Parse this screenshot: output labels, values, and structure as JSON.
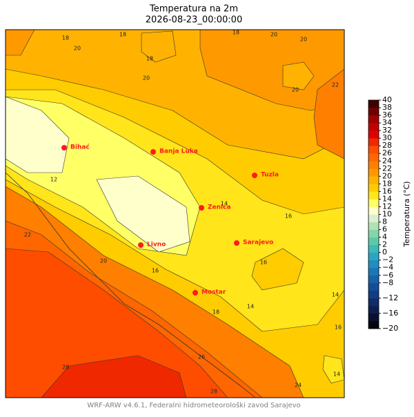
{
  "title": "Temperatura na 2m",
  "subtitle": "2026-08-23_00:00:00",
  "footer": "WRF-ARW v4.6.1, Federalni hidrometeorološki zavod Sarajevo",
  "colorbar": {
    "label": "Temperatura (°C)",
    "lim": [
      -20,
      40
    ],
    "ticks": [
      {
        "value": -20,
        "label": "−20"
      },
      {
        "value": -16,
        "label": "−16"
      },
      {
        "value": -12,
        "label": "−12"
      },
      {
        "value": -8,
        "label": "−8"
      },
      {
        "value": -6,
        "label": "−6"
      },
      {
        "value": -4,
        "label": "−4"
      },
      {
        "value": -2,
        "label": "−2"
      },
      0,
      2,
      4,
      6,
      8,
      10,
      12,
      14,
      16,
      18,
      20,
      22,
      24,
      26,
      28,
      30,
      32,
      34,
      36,
      38,
      40
    ],
    "colors": [
      "#05050f",
      "#0a1030",
      "#0d1f4d",
      "#0f2d6b",
      "#123d85",
      "#144e9a",
      "#1762a8",
      "#1a78b5",
      "#1f8fbf",
      "#2aa5c4",
      "#3dbab8",
      "#5ccaa8",
      "#85d6a6",
      "#b0e2b4",
      "#dbefd4",
      "#ffffcc",
      "#ffff66",
      "#ffe51a",
      "#ffcc00",
      "#ffb300",
      "#ff9900",
      "#ff7f00",
      "#ff6600",
      "#ff4d00",
      "#f02800",
      "#e00000",
      "#c00000",
      "#a00000",
      "#700000",
      "#400000"
    ]
  },
  "cities": [
    "Bihać",
    "Banja Luka",
    "Tuzla",
    "Zenica",
    "Sarajevo",
    "Livno",
    "Mostar"
  ],
  "contour_labels": [
    "18",
    "20",
    "18",
    "18",
    "20",
    "18",
    "20",
    "20",
    "20",
    "22",
    "12",
    "22",
    "20",
    "16",
    "14",
    "16",
    "16",
    "14",
    "18",
    "14",
    "16",
    "26",
    "28",
    "28",
    "24",
    "14"
  ]
}
